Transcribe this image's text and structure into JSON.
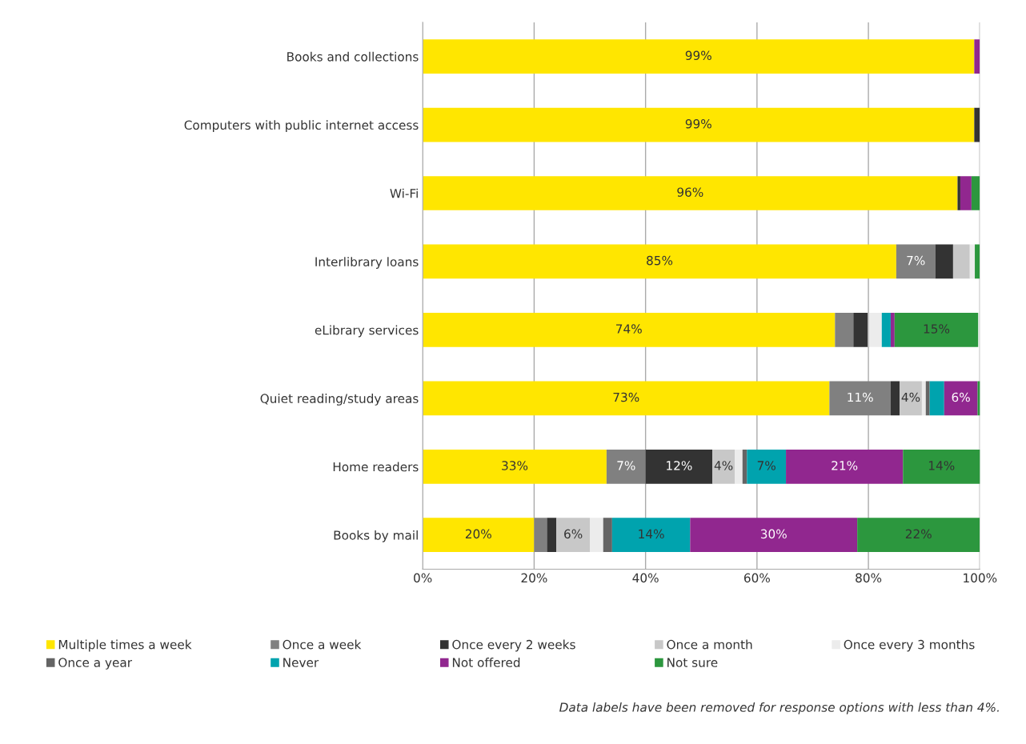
{
  "chart_data": {
    "type": "bar",
    "orientation": "horizontal",
    "stacked": true,
    "categories": [
      "Books and collections",
      "Computers with public internet access",
      "Wi-Fi",
      "Interlibrary loans",
      "eLibrary services",
      "Quiet reading/study areas",
      "Home readers",
      "Books by mail"
    ],
    "series": [
      {
        "name": "Multiple times a week",
        "color": "#ffe600",
        "values": [
          99,
          99,
          96,
          85,
          74,
          73,
          33,
          20
        ],
        "value_labels": [
          "99%",
          "99%",
          "96%",
          "85%",
          "74%",
          "73%",
          "33%",
          "20%"
        ]
      },
      {
        "name": "Once a week",
        "color": "#808080",
        "values": [
          0,
          0,
          0,
          7,
          3.3,
          11,
          7,
          2.3
        ],
        "value_labels": [
          null,
          null,
          null,
          "7%",
          null,
          "11%",
          "7%",
          null
        ]
      },
      {
        "name": "Once every 2 weeks",
        "color": "#333333",
        "values": [
          0,
          1,
          0.5,
          3.2,
          2.6,
          1.6,
          12,
          1.7
        ],
        "value_labels": [
          null,
          null,
          null,
          null,
          null,
          null,
          "12%",
          null
        ]
      },
      {
        "name": "Once a month",
        "color": "#c8c8c8",
        "values": [
          0,
          0,
          0,
          3,
          0.3,
          4,
          4,
          6
        ],
        "value_labels": [
          null,
          null,
          null,
          null,
          null,
          "4%",
          "4%",
          "6%"
        ]
      },
      {
        "name": "Once every 3 months",
        "color": "#ececec",
        "values": [
          0,
          0,
          0,
          0.9,
          2.2,
          0.7,
          1.4,
          2.4
        ],
        "value_labels": [
          null,
          null,
          null,
          null,
          null,
          null,
          null,
          null
        ]
      },
      {
        "name": "Once a year",
        "color": "#646464",
        "values": [
          0,
          0,
          0,
          0,
          0,
          0.7,
          0.8,
          1.6
        ],
        "value_labels": [
          null,
          null,
          null,
          null,
          null,
          null,
          null,
          null
        ]
      },
      {
        "name": "Never",
        "color": "#00a3ae",
        "values": [
          0,
          0,
          0,
          0,
          1.6,
          2.6,
          7,
          14
        ],
        "value_labels": [
          null,
          null,
          null,
          null,
          null,
          null,
          "7%",
          "14%"
        ]
      },
      {
        "name": "Not offered",
        "color": "#91278f",
        "values": [
          1,
          0,
          2,
          0,
          0.7,
          6,
          21,
          30
        ],
        "value_labels": [
          null,
          null,
          null,
          null,
          null,
          "6%",
          "21%",
          "30%"
        ]
      },
      {
        "name": "Not sure",
        "color": "#2c973e",
        "values": [
          0,
          0,
          1.5,
          0.9,
          15,
          0.7,
          14,
          22
        ],
        "value_labels": [
          null,
          null,
          null,
          null,
          "15%",
          null,
          "14%",
          "22%"
        ]
      }
    ],
    "xlim": [
      0,
      100
    ],
    "xticks": [
      {
        "value": 0,
        "label": "0%"
      },
      {
        "value": 20,
        "label": "20%"
      },
      {
        "value": 40,
        "label": "40%"
      },
      {
        "value": 60,
        "label": "60%"
      },
      {
        "value": 80,
        "label": "80%"
      },
      {
        "value": 100,
        "label": "100%"
      }
    ],
    "grid": "x",
    "legend": "bottom",
    "annotations": [
      "Data labels have been removed for response options with less than 4%."
    ]
  }
}
